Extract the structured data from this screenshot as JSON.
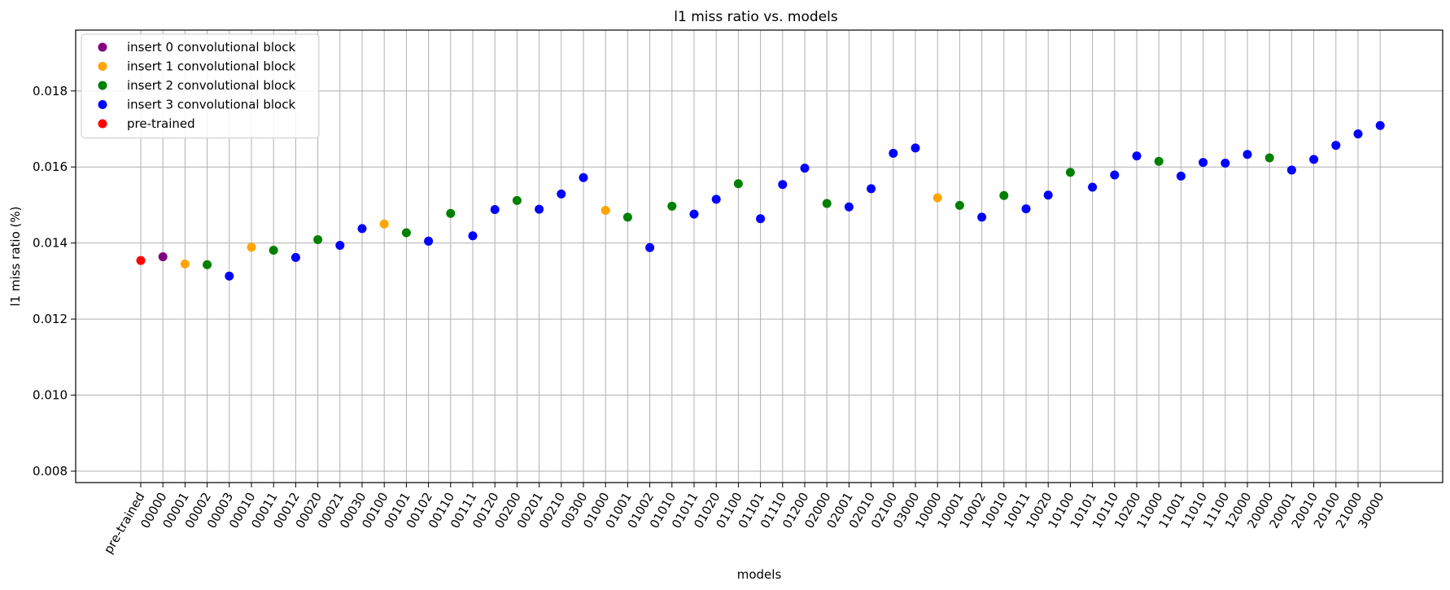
{
  "chart_data": {
    "type": "scatter",
    "title": "l1 miss ratio vs. models",
    "xlabel": "models",
    "ylabel": "l1 miss ratio (%)",
    "ylim": [
      0.0077,
      0.0196
    ],
    "yticks": [
      "0.008",
      "0.010",
      "0.012",
      "0.014",
      "0.016",
      "0.018"
    ],
    "grid": true,
    "legend_position": "top-left",
    "legend": [
      {
        "label": "insert 0 convolutional block",
        "color": "#800080"
      },
      {
        "label": "insert 1 convolutional block",
        "color": "#ffa500"
      },
      {
        "label": "insert 2 convolutional block",
        "color": "#008000"
      },
      {
        "label": "insert 3 convolutional block",
        "color": "#0000ff"
      },
      {
        "label": "pre-trained",
        "color": "#ff0000"
      }
    ],
    "categories": [
      "pre-trained",
      "00000",
      "00001",
      "00002",
      "00003",
      "00010",
      "00011",
      "00012",
      "00020",
      "00021",
      "00030",
      "00100",
      "00101",
      "00102",
      "00110",
      "00111",
      "00120",
      "00200",
      "00201",
      "00210",
      "00300",
      "01000",
      "01001",
      "01002",
      "01010",
      "01011",
      "01020",
      "01100",
      "01101",
      "01110",
      "01200",
      "02000",
      "02001",
      "02010",
      "02100",
      "03000",
      "10000",
      "10001",
      "10002",
      "10010",
      "10011",
      "10020",
      "10100",
      "10101",
      "10110",
      "10200",
      "11000",
      "11001",
      "11010",
      "11100",
      "12000",
      "20000",
      "20001",
      "20010",
      "20100",
      "21000",
      "30000"
    ],
    "values": [
      0.01354,
      0.01364,
      0.01345,
      0.01343,
      0.01313,
      0.01389,
      0.01381,
      0.01362,
      0.01409,
      0.01394,
      0.01438,
      0.0145,
      0.01427,
      0.01405,
      0.01478,
      0.01419,
      0.01488,
      0.01512,
      0.01489,
      0.01529,
      0.01572,
      0.01486,
      0.01468,
      0.01388,
      0.01497,
      0.01476,
      0.01515,
      0.01556,
      0.01464,
      0.01554,
      0.01597,
      0.01504,
      0.01495,
      0.01543,
      0.01636,
      0.0165,
      0.01519,
      0.01499,
      0.01468,
      0.01525,
      0.0149,
      0.01526,
      0.01586,
      0.01547,
      0.01579,
      0.01629,
      0.01615,
      0.01576,
      0.01612,
      0.0161,
      0.01633,
      0.01624,
      0.01592,
      0.0162,
      0.01657,
      0.01687,
      0.01709
    ],
    "groups": [
      4,
      0,
      1,
      2,
      3,
      1,
      2,
      3,
      2,
      3,
      3,
      1,
      2,
      3,
      2,
      3,
      3,
      2,
      3,
      3,
      3,
      1,
      2,
      3,
      2,
      3,
      3,
      2,
      3,
      3,
      3,
      2,
      3,
      3,
      3,
      3,
      1,
      2,
      3,
      2,
      3,
      3,
      2,
      3,
      3,
      3,
      2,
      3,
      3,
      3,
      3,
      2,
      3,
      3,
      3,
      3,
      3
    ]
  }
}
